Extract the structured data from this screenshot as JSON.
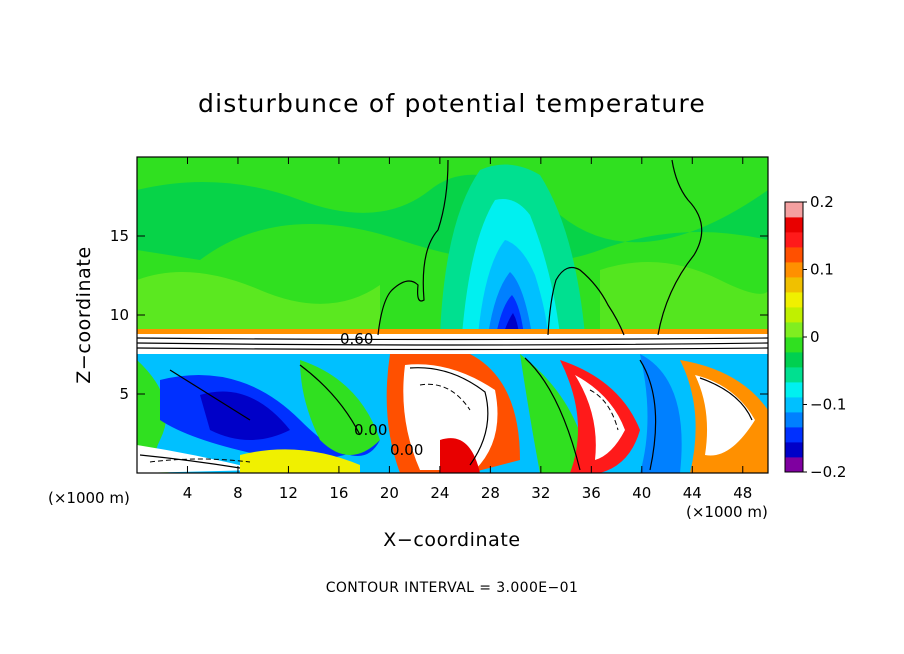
{
  "chart_data": {
    "type": "heatmap",
    "title": "disturbunce of potential temperature",
    "xlabel": "X−coordinate",
    "ylabel": "Z−coordinate",
    "x_unit_left": "(×1000 m)",
    "x_unit_right": "(×1000 m)",
    "xlim": [
      0,
      50
    ],
    "ylim": [
      0,
      20
    ],
    "x_ticks": [
      4,
      8,
      12,
      16,
      20,
      24,
      28,
      32,
      36,
      40,
      44,
      48
    ],
    "x_tick_labels": [
      "4",
      "8",
      "12",
      "16",
      "20",
      "24",
      "28",
      "32",
      "36",
      "40",
      "44",
      "48"
    ],
    "y_ticks": [
      5,
      10,
      15
    ],
    "y_tick_labels": [
      "5",
      "10",
      "15"
    ],
    "colorbar": {
      "range": [
        -0.2,
        0.2
      ],
      "tick_values": [
        0.2,
        0.1,
        0,
        -0.1,
        -0.2
      ],
      "tick_labels": [
        "0.2",
        "0.1",
        "0",
        "−0.1",
        "−0.2"
      ],
      "colors": [
        "#7f00a0",
        "#0000c8",
        "#0030ff",
        "#0080ff",
        "#00c0ff",
        "#00f0f0",
        "#00e090",
        "#00d050",
        "#30e020",
        "#80ee20",
        "#c0f000",
        "#f0f000",
        "#f0c000",
        "#ff9000",
        "#ff5000",
        "#ff1a1a",
        "#e80000",
        "#f4a0a0"
      ]
    },
    "contour_labels": [
      "0.60",
      "0.00",
      "0.00"
    ],
    "footnote": "CONTOUR INTERVAL = 3.000E−01"
  }
}
